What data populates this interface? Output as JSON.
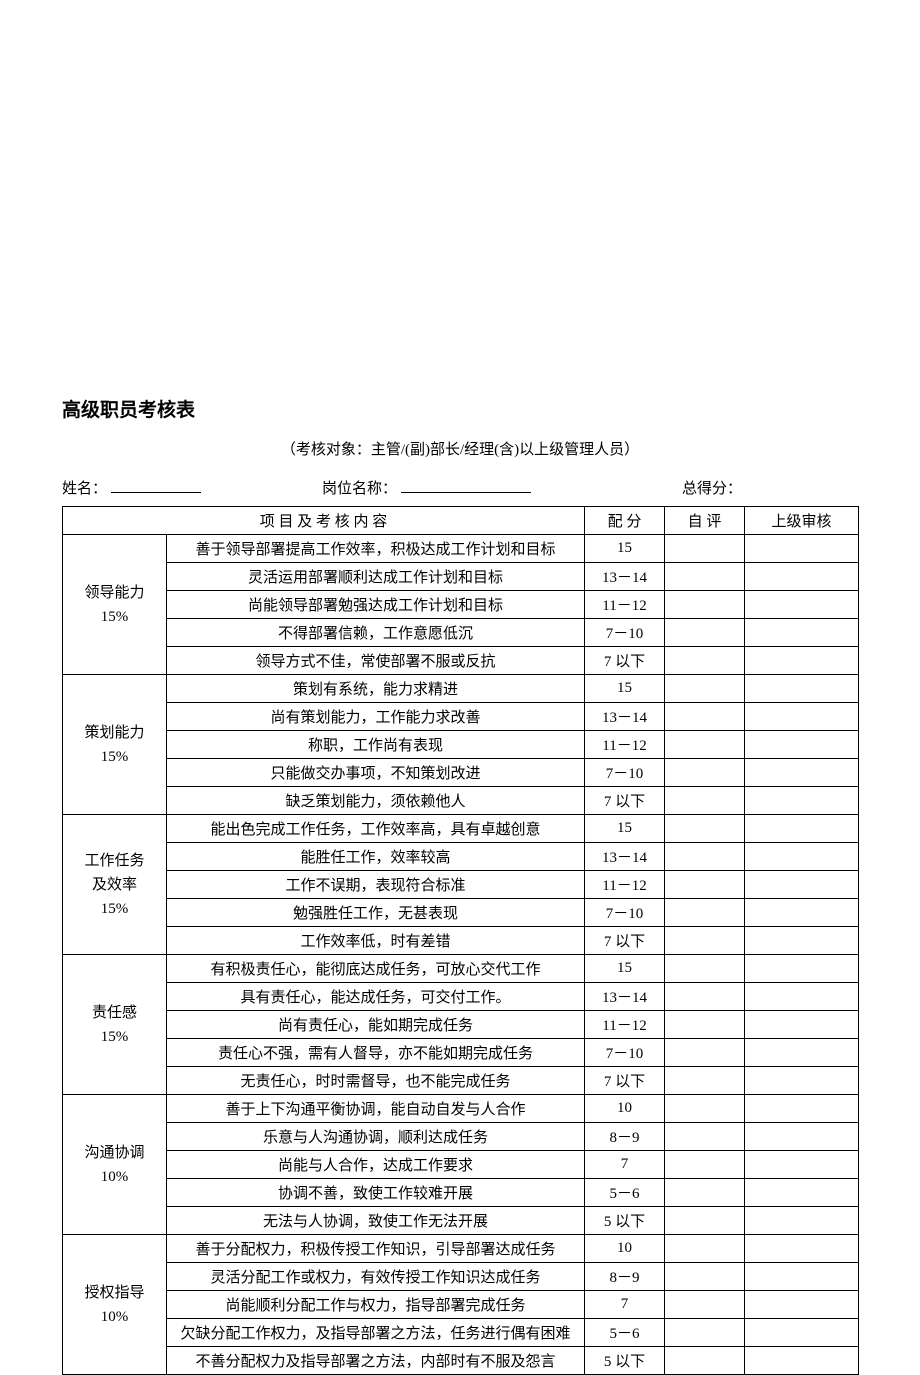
{
  "title": "高级职员考核表",
  "subtitle": "（考核对象：主管/(副)部长/经理(含)以上级管理人员）",
  "header": {
    "name_label": "姓名：",
    "position_label": "岗位名称：",
    "total_label": "总得分："
  },
  "table_header": {
    "content": "项 目 及 考 核 内 容",
    "score": "配 分",
    "self": "自 评",
    "supervisor": "上级审核"
  },
  "categories": [
    {
      "name": "领导能力",
      "weight": "15%",
      "rows": [
        {
          "desc": "善于领导部署提高工作效率，积极达成工作计划和目标",
          "score": "15"
        },
        {
          "desc": "灵活运用部署顺利达成工作计划和目标",
          "score": "13－14"
        },
        {
          "desc": "尚能领导部署勉强达成工作计划和目标",
          "score": "11－12"
        },
        {
          "desc": "不得部署信赖，工作意愿低沉",
          "score": "7－10"
        },
        {
          "desc": "领导方式不佳，常使部署不服或反抗",
          "score": "7 以下"
        }
      ]
    },
    {
      "name": "策划能力",
      "weight": "15%",
      "rows": [
        {
          "desc": "策划有系统，能力求精进",
          "score": "15"
        },
        {
          "desc": "尚有策划能力，工作能力求改善",
          "score": "13－14"
        },
        {
          "desc": "称职，工作尚有表现",
          "score": "11－12"
        },
        {
          "desc": "只能做交办事项，不知策划改进",
          "score": "7－10"
        },
        {
          "desc": "缺乏策划能力，须依赖他人",
          "score": "7 以下"
        }
      ]
    },
    {
      "name": "工作任务及效率",
      "weight": "15%",
      "rows": [
        {
          "desc": "能出色完成工作任务，工作效率高，具有卓越创意",
          "score": "15"
        },
        {
          "desc": "能胜任工作，效率较高",
          "score": "13－14"
        },
        {
          "desc": "工作不误期，表现符合标准",
          "score": "11－12"
        },
        {
          "desc": "勉强胜任工作，无甚表现",
          "score": "7－10"
        },
        {
          "desc": "工作效率低，时有差错",
          "score": "7 以下"
        }
      ]
    },
    {
      "name": "责任感",
      "weight": "15%",
      "rows": [
        {
          "desc": "有积极责任心，能彻底达成任务，可放心交代工作",
          "score": "15"
        },
        {
          "desc": "具有责任心，能达成任务，可交付工作。",
          "score": "13－14"
        },
        {
          "desc": "尚有责任心，能如期完成任务",
          "score": "11－12"
        },
        {
          "desc": "责任心不强，需有人督导，亦不能如期完成任务",
          "score": "7－10"
        },
        {
          "desc": "无责任心，时时需督导，也不能完成任务",
          "score": "7 以下"
        }
      ]
    },
    {
      "name": "沟通协调",
      "weight": "10%",
      "rows": [
        {
          "desc": "善于上下沟通平衡协调，能自动自发与人合作",
          "score": "10"
        },
        {
          "desc": "乐意与人沟通协调，顺利达成任务",
          "score": "8－9"
        },
        {
          "desc": "尚能与人合作，达成工作要求",
          "score": "7"
        },
        {
          "desc": "协调不善，致使工作较难开展",
          "score": "5－6"
        },
        {
          "desc": "无法与人协调，致使工作无法开展",
          "score": "5 以下"
        }
      ]
    },
    {
      "name": "授权指导",
      "weight": "10%",
      "rows": [
        {
          "desc": "善于分配权力，积极传授工作知识，引导部署达成任务",
          "score": "10"
        },
        {
          "desc": "灵活分配工作或权力，有效传授工作知识达成任务",
          "score": "8－9"
        },
        {
          "desc": "尚能顺利分配工作与权力，指导部署完成任务",
          "score": "7"
        },
        {
          "desc": "欠缺分配工作权力，及指导部署之方法，任务进行偶有困难",
          "score": "5－6"
        },
        {
          "desc": "不善分配权力及指导部署之方法，内部时有不服及怨言",
          "score": "5 以下"
        }
      ]
    }
  ]
}
